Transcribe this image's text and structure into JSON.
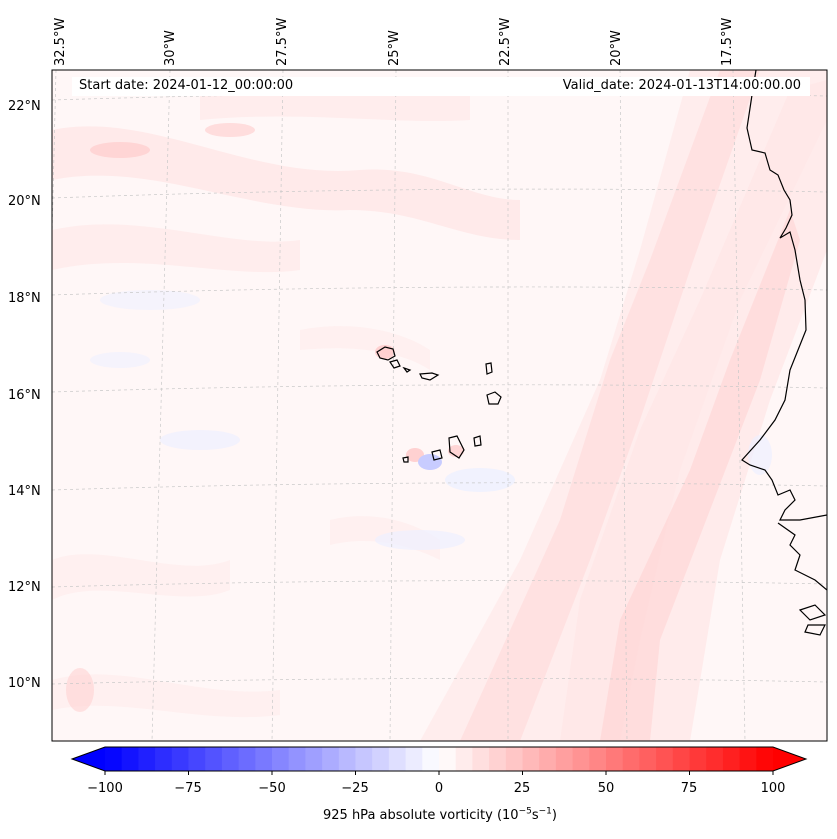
{
  "map": {
    "start_date": "Start date: 2024-01-12_00:00:00",
    "valid_date": "Valid_date: 2024-01-13T14:00:00.00",
    "lat_labels": [
      "22°N",
      "20°N",
      "18°N",
      "16°N",
      "14°N",
      "12°N",
      "10°N"
    ],
    "lon_labels": [
      "32.5°W",
      "30°W",
      "27.5°W",
      "25°W",
      "22.5°W",
      "20°W",
      "17.5°W"
    ],
    "colors": {
      "coast": "#000000",
      "grid": "#bbbbbb",
      "neg_max": "#0000ff",
      "pos_max": "#ff0000"
    }
  },
  "colorbar": {
    "ticks": [
      "−100",
      "−75",
      "−50",
      "−25",
      "0",
      "25",
      "50",
      "75",
      "100"
    ],
    "min": -100,
    "max": 100,
    "label": {
      "base": "925 hPa absolute vorticity (10",
      "exp1": "−5",
      "mid": "s",
      "exp2": "−1",
      "end": ")"
    }
  }
}
